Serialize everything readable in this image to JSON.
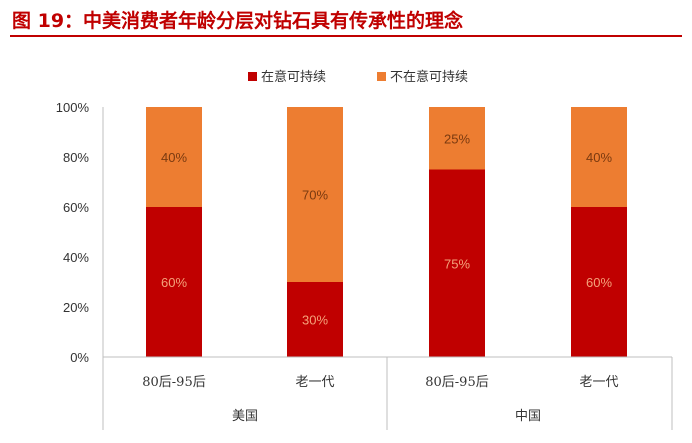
{
  "figure_title": "图 19：中美消费者年龄分层对钻石具有传承性的理念",
  "chart_data": {
    "type": "bar",
    "stacked": true,
    "categories": [
      "80后-95后",
      "老一代",
      "80后-95后",
      "老一代"
    ],
    "groups": [
      {
        "name": "美国",
        "categories": [
          "80后-95后",
          "老一代"
        ]
      },
      {
        "name": "中国",
        "categories": [
          "80后-95后",
          "老一代"
        ]
      }
    ],
    "series": [
      {
        "name": "在意可持续",
        "color": "#c00000",
        "values": [
          60,
          30,
          75,
          60
        ],
        "labels": [
          "60%",
          "30%",
          "75%",
          "60%"
        ]
      },
      {
        "name": "不在意可持续",
        "color": "#ed7d31",
        "values": [
          40,
          70,
          25,
          40
        ],
        "labels": [
          "40%",
          "70%",
          "25%",
          "40%"
        ]
      }
    ],
    "yticks": [
      "0%",
      "20%",
      "40%",
      "60%",
      "80%",
      "100%"
    ],
    "ylim": [
      0,
      100
    ],
    "legend_position": "top-center",
    "grid": false
  }
}
